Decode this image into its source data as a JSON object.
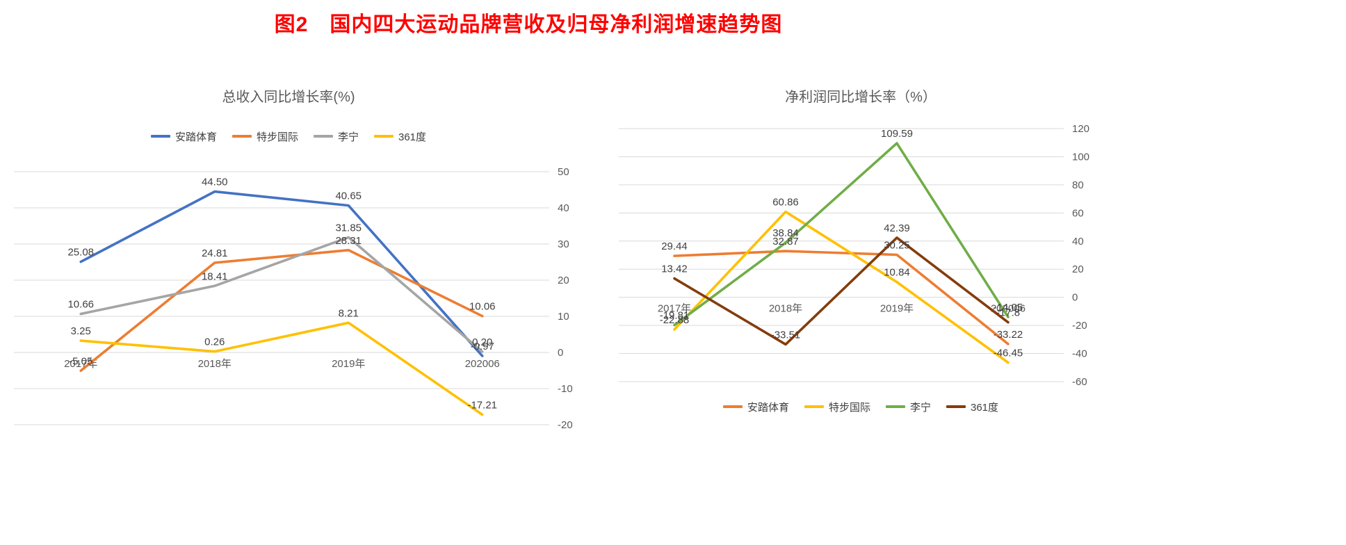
{
  "page_title": "图2　国内四大运动品牌营收及归母净利润增速趋势图",
  "chart_data": [
    {
      "type": "line",
      "title": "总收入同比增长率(%)",
      "categories": [
        "2017年",
        "2018年",
        "2019年",
        "202006"
      ],
      "series": [
        {
          "name": "安踏体育",
          "color": "#4472C4",
          "values": [
            25.08,
            44.5,
            40.65,
            -0.97
          ],
          "labels": [
            "25.08",
            "44.50",
            "40.65",
            "-0.97"
          ]
        },
        {
          "name": "特步国际",
          "color": "#ED7D31",
          "values": [
            -5.05,
            24.81,
            28.31,
            10.06
          ],
          "labels": [
            "-5.05",
            "24.81",
            "28.31",
            "10.06"
          ]
        },
        {
          "name": "李宁",
          "color": "#A5A5A5",
          "values": [
            10.66,
            18.41,
            31.85,
            0.2
          ],
          "labels": [
            "10.66",
            "18.41",
            "31.85",
            "0.20"
          ]
        },
        {
          "name": "361度",
          "color": "#FFC000",
          "values": [
            3.25,
            0.26,
            8.21,
            -17.21
          ],
          "labels": [
            "3.25",
            "0.26",
            "8.21",
            "-17.21"
          ]
        }
      ],
      "ylim": [
        -20,
        50
      ],
      "yticks": [
        50,
        40,
        30,
        20,
        10,
        0,
        -10,
        -20
      ],
      "yaxis_side": "right",
      "legend_position": "top",
      "grid": true,
      "xlabel": "",
      "ylabel": ""
    },
    {
      "type": "line",
      "title": "净利润同比增长率（%）",
      "categories": [
        "2017年",
        "2018年",
        "2019年",
        "202006"
      ],
      "series": [
        {
          "name": "安踏体育",
          "color": "#ED7D31",
          "values": [
            29.44,
            32.87,
            30.25,
            -33.22
          ],
          "labels": [
            "29.44",
            "32.87",
            "30.25",
            "-33.22"
          ]
        },
        {
          "name": "特步国际",
          "color": "#FFC000",
          "values": [
            -22.88,
            60.86,
            10.84,
            -46.45
          ],
          "labels": [
            "-22.88",
            "60.86",
            "10.84",
            "-46.45"
          ]
        },
        {
          "name": "李宁",
          "color": "#70AD47",
          "values": [
            -19.81,
            38.84,
            109.59,
            -14.05
          ],
          "labels": [
            "-19.81",
            "38.84",
            "109.59",
            "-14.05"
          ]
        },
        {
          "name": "361度",
          "color": "#843C0C",
          "values": [
            13.42,
            -33.51,
            42.39,
            -17.8
          ],
          "labels": [
            "13.42",
            "-33.51",
            "42.39",
            "-17.8"
          ]
        }
      ],
      "ylim": [
        -60,
        120
      ],
      "yticks": [
        120,
        100,
        80,
        60,
        40,
        20,
        0,
        -20,
        -40,
        -60
      ],
      "yaxis_side": "right",
      "legend_position": "bottom",
      "grid": true,
      "xlabel": "",
      "ylabel": ""
    }
  ],
  "colors": {
    "title": "#FF0000",
    "axis_text": "#595959",
    "data_label_text": "#3F3F3F",
    "gridline": "#D9D9D9",
    "background": "#FFFFFF"
  }
}
